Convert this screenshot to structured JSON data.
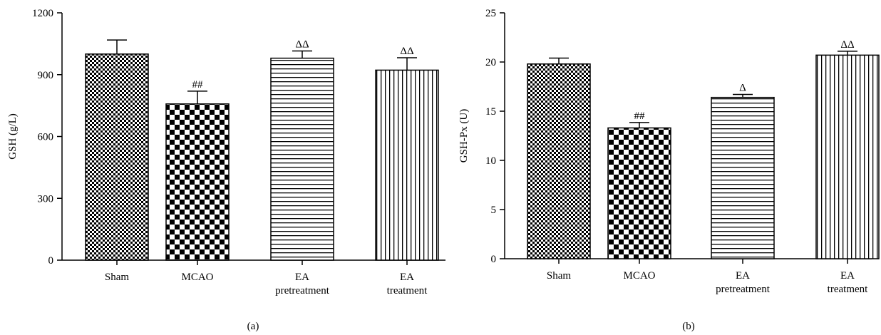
{
  "chart_data": [
    {
      "type": "bar",
      "panel_label": "(a)",
      "ylabel": "GSH (g/L)",
      "ylim": [
        0,
        1200
      ],
      "yticks": [
        0,
        300,
        600,
        900,
        1200
      ],
      "categories": [
        [
          "Sham"
        ],
        [
          "MCAO"
        ],
        [
          "EA",
          "pretreatment"
        ],
        [
          "EA",
          "treatment"
        ]
      ],
      "values": [
        1000,
        758,
        980,
        922
      ],
      "errors": [
        68,
        62,
        35,
        60
      ],
      "annotations": [
        "",
        "##",
        "ΔΔ",
        "ΔΔ"
      ],
      "patterns": [
        "fine-check",
        "check",
        "horizontal",
        "vertical"
      ]
    },
    {
      "type": "bar",
      "panel_label": "(b)",
      "ylabel": "GSH-Px (U)",
      "ylim": [
        0,
        25
      ],
      "yticks": [
        0,
        5,
        10,
        15,
        20,
        25
      ],
      "categories": [
        [
          "Sham"
        ],
        [
          "MCAO"
        ],
        [
          "EA",
          "pretreatment"
        ],
        [
          "EA",
          "treatment"
        ]
      ],
      "values": [
        19.8,
        13.3,
        16.4,
        20.7
      ],
      "errors": [
        0.6,
        0.55,
        0.3,
        0.4
      ],
      "annotations": [
        "",
        "##",
        "Δ",
        "ΔΔ"
      ],
      "patterns": [
        "fine-check",
        "check",
        "horizontal",
        "vertical"
      ]
    }
  ]
}
